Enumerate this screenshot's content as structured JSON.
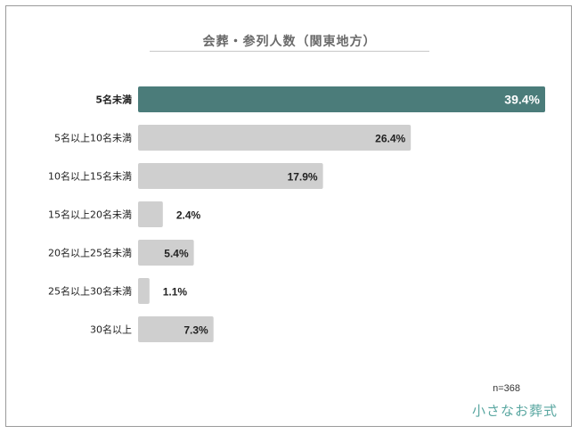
{
  "chart_title": "会葬・参列人数（関東地方）",
  "sample_note": "n=368",
  "brand_name": "小さなお葬式",
  "colors": {
    "highlight": "#4b7c7a",
    "bar": "#cfcfcf",
    "label_on_highlight": "#ffffff",
    "label": "#222222"
  },
  "chart_data": {
    "type": "bar",
    "orientation": "horizontal",
    "categories": [
      "5名未満",
      "5名以上10名未満",
      "10名以上15名未満",
      "15名以上20名未満",
      "20名以上25名未満",
      "25名以上30名未満",
      "30名以上"
    ],
    "values": [
      39.4,
      26.4,
      17.9,
      2.4,
      5.4,
      1.1,
      7.3
    ],
    "value_labels": [
      "39.4%",
      "26.4%",
      "17.9%",
      "2.4%",
      "5.4%",
      "1.1%",
      "7.3%"
    ],
    "highlight_index": 0,
    "unit": "%",
    "xlim": [
      0,
      40
    ],
    "grid": false,
    "legend": "none"
  }
}
